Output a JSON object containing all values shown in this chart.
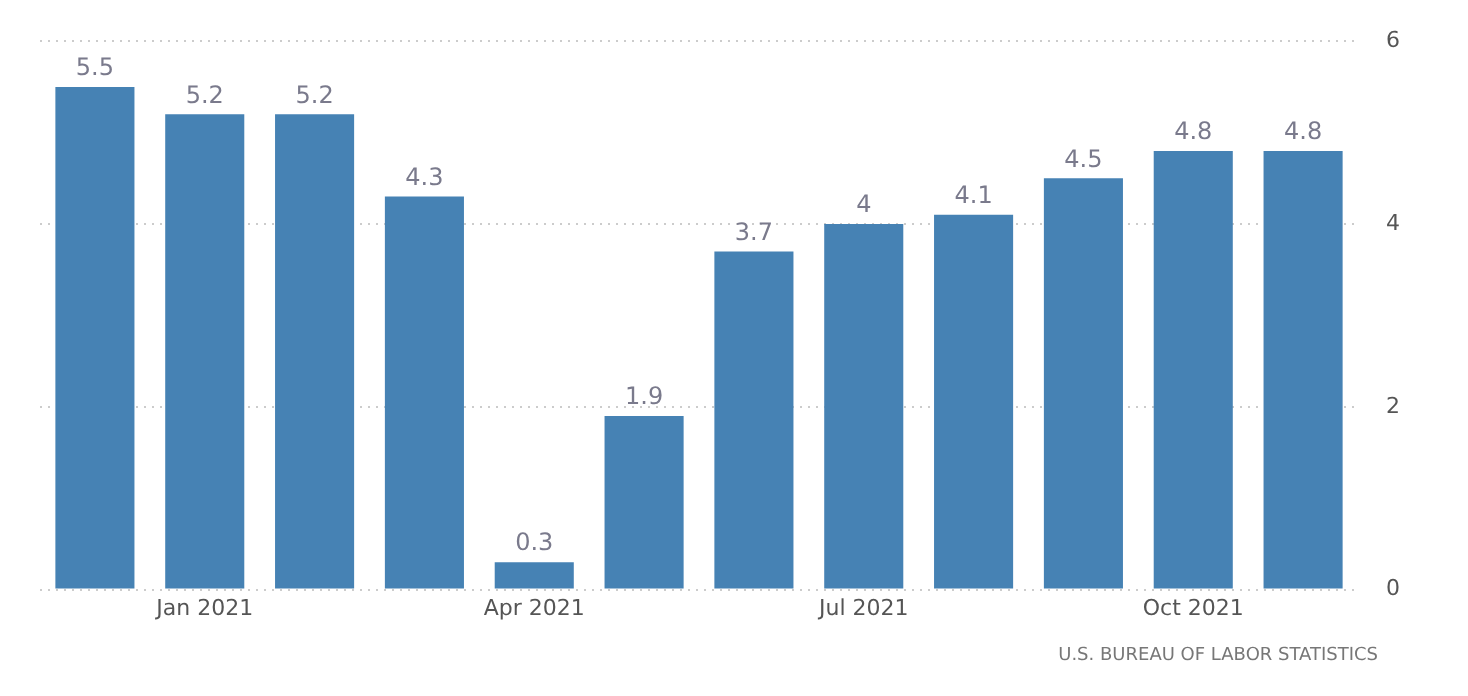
{
  "chart_data": {
    "type": "bar",
    "categories": [
      null,
      "Jan 2021",
      null,
      null,
      "Apr 2021",
      null,
      null,
      "Jul 2021",
      null,
      null,
      "Oct 2021",
      null
    ],
    "values": [
      5.5,
      5.2,
      5.2,
      4.3,
      0.3,
      1.9,
      3.7,
      4,
      4.1,
      4.5,
      4.8,
      4.8
    ],
    "color": "#4682b4",
    "ylim": [
      0,
      6
    ],
    "yticks": [
      0,
      2,
      4,
      6
    ],
    "grid": "y",
    "legend": false,
    "data_labels": true,
    "annotations": [
      "U.S. BUREAU OF LABOR STATISTICS"
    ]
  }
}
